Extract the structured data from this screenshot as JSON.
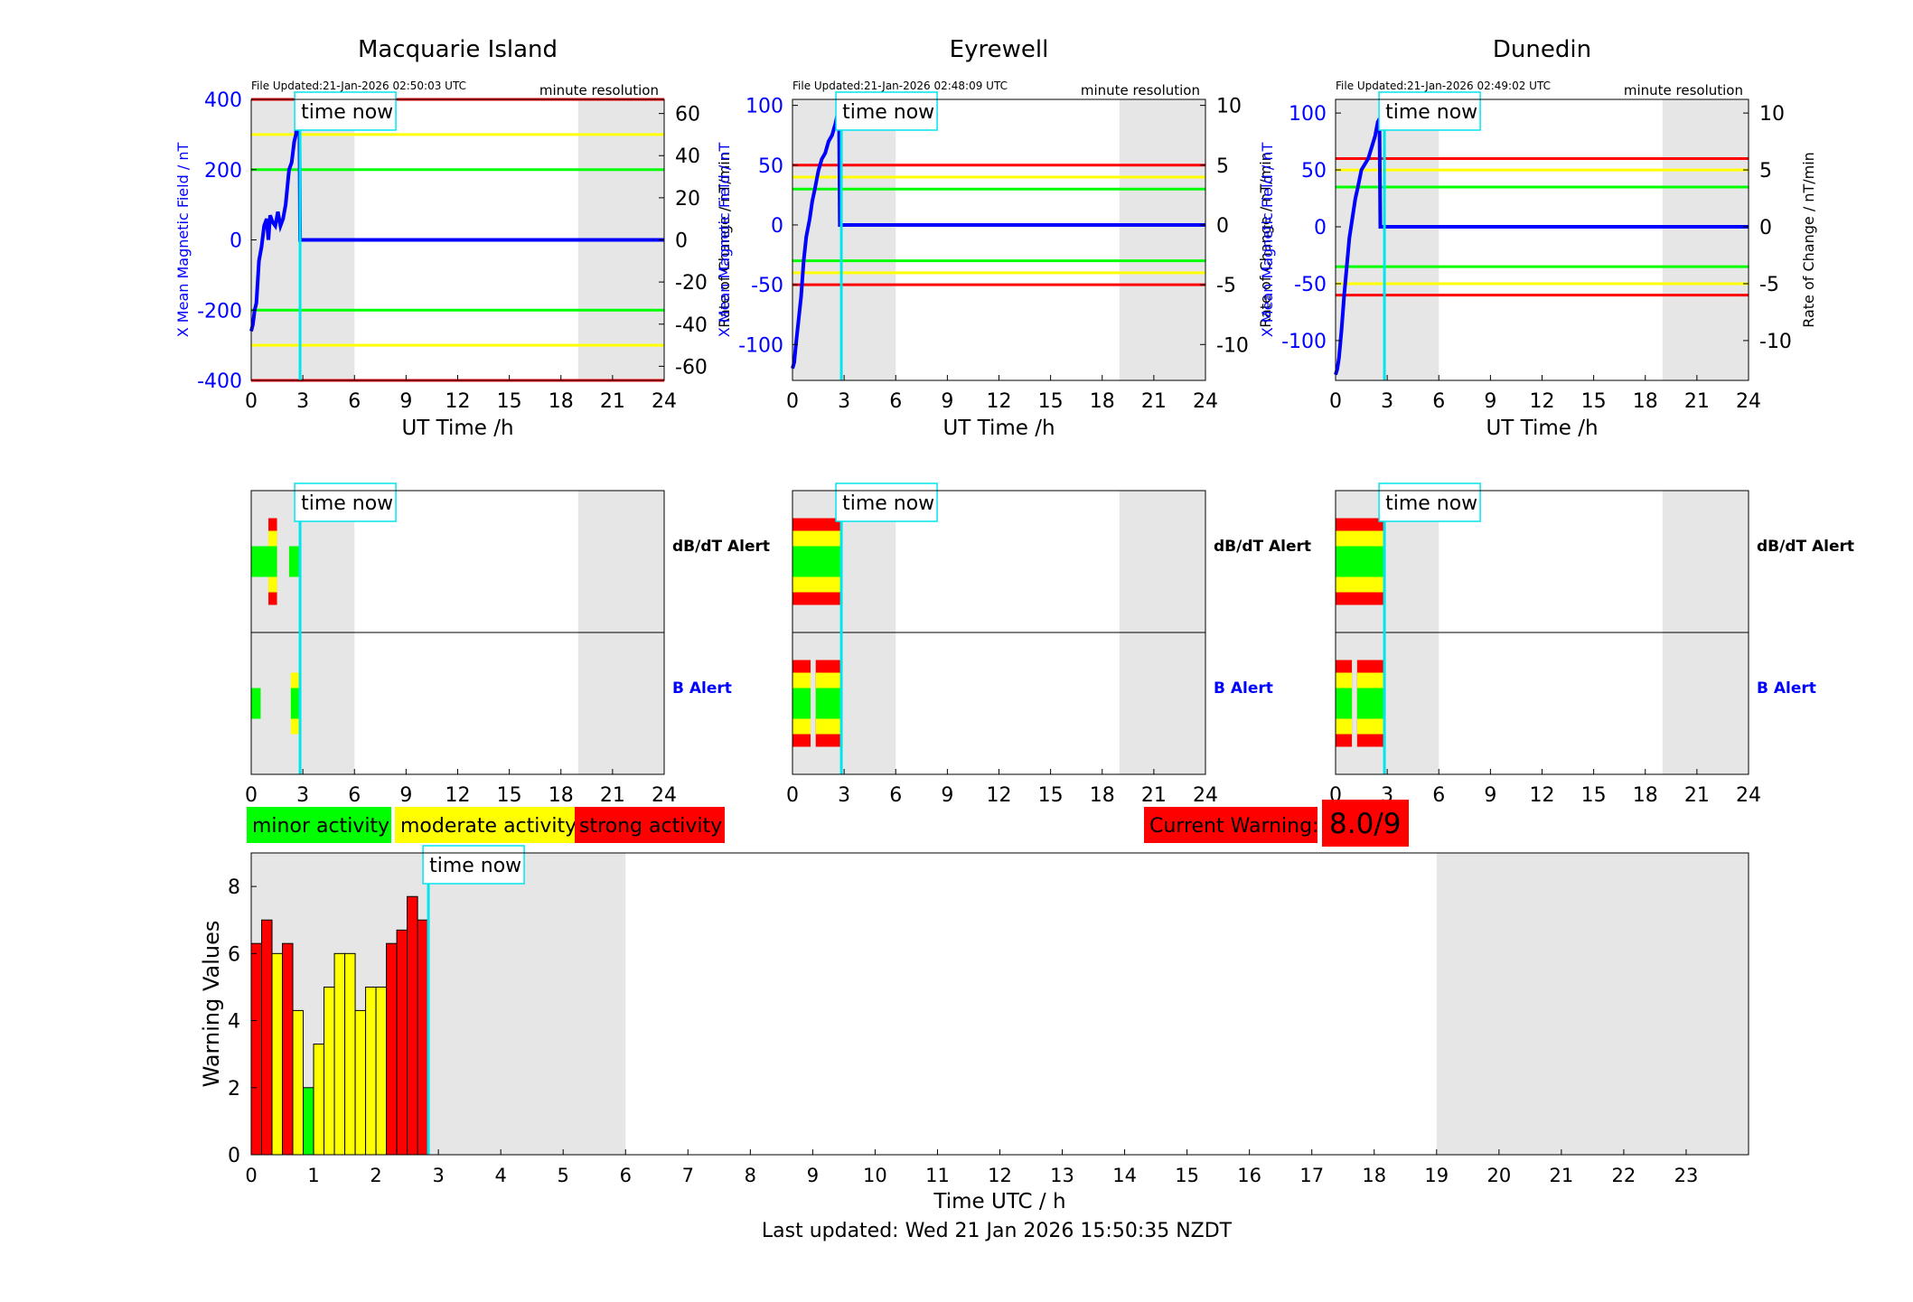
{
  "footer": {
    "last_updated": "Last updated: Wed 21 Jan 2026 15:50:35 NZDT"
  },
  "colors": {
    "minor": "#00ff00",
    "moderate": "#ffff00",
    "strong": "#ff0000",
    "field": "#0000ff",
    "time_now": "#00e5ee",
    "night_shade": "#e6e6e6"
  },
  "legend": {
    "minor": "minor activity",
    "moderate": "moderate activity",
    "strong": "strong activity"
  },
  "current_warning": {
    "label": "Current Warning:",
    "value": "8.0/9"
  },
  "time_now_label": "time now",
  "chart_data": [
    {
      "type": "line",
      "panel": "field",
      "title": "Macquarie Island",
      "file_updated": "File Updated:21-Jan-2026 02:50:03 UTC",
      "resolution": "minute resolution",
      "xlabel": "UT Time /h",
      "ylabel": "X Mean Magnetic Field / nT",
      "y2label": "Rate of Change / nT/min",
      "xlim": [
        0,
        24
      ],
      "ylim": [
        -400,
        400
      ],
      "y2lim": [
        -66.7,
        66.7
      ],
      "xticks": [
        "0",
        "3",
        "6",
        "9",
        "12",
        "15",
        "18",
        "21",
        "24"
      ],
      "yticks": [
        "-400",
        "-200",
        "0",
        "200",
        "400"
      ],
      "y2ticks": [
        "-60",
        "-40",
        "-20",
        "0",
        "20",
        "40",
        "60"
      ],
      "time_now": 2.84,
      "night_shading": [
        [
          0,
          6
        ],
        [
          19,
          24
        ]
      ],
      "thresholds": [
        {
          "level": "strong",
          "value": 400
        },
        {
          "level": "moderate",
          "value": 300
        },
        {
          "level": "minor",
          "value": 200
        },
        {
          "level": "minor",
          "value": -200
        },
        {
          "level": "moderate",
          "value": -300
        },
        {
          "level": "strong",
          "value": -400
        }
      ],
      "series": [
        {
          "x": [
            0,
            0.1,
            0.2,
            0.3,
            0.45,
            0.6,
            0.75,
            0.9,
            1.0,
            1.1,
            1.25,
            1.4,
            1.55,
            1.7,
            1.85,
            2.0,
            2.1,
            2.2,
            2.35,
            2.5,
            2.6,
            2.7,
            2.8,
            2.84,
            3.0,
            24
          ],
          "y": [
            -260,
            -240,
            -200,
            -180,
            -60,
            -20,
            40,
            60,
            0,
            70,
            50,
            40,
            80,
            40,
            60,
            100,
            150,
            200,
            220,
            280,
            300,
            380,
            360,
            0,
            0,
            0
          ]
        }
      ]
    },
    {
      "type": "line",
      "panel": "field",
      "title": "Eyrewell",
      "file_updated": "File Updated:21-Jan-2026 02:48:09 UTC",
      "resolution": "minute resolution",
      "xlabel": "UT Time /h",
      "ylabel": "X Mean Magnetic Field / nT",
      "y2label": "Rate of Change / nT/min",
      "xlim": [
        0,
        24
      ],
      "ylim": [
        -130,
        105
      ],
      "y2lim": [
        -13,
        10.5
      ],
      "xticks": [
        "0",
        "3",
        "6",
        "9",
        "12",
        "15",
        "18",
        "21",
        "24"
      ],
      "yticks": [
        "-100",
        "-50",
        "0",
        "50",
        "100"
      ],
      "y2ticks": [
        "-10",
        "-5",
        "0",
        "5",
        "10"
      ],
      "time_now": 2.84,
      "night_shading": [
        [
          0,
          6
        ],
        [
          19,
          24
        ]
      ],
      "thresholds": [
        {
          "level": "strong",
          "value": 50
        },
        {
          "level": "moderate",
          "value": 40
        },
        {
          "level": "minor",
          "value": 30
        },
        {
          "level": "minor",
          "value": -30
        },
        {
          "level": "moderate",
          "value": -40
        },
        {
          "level": "strong",
          "value": -50
        }
      ],
      "series": [
        {
          "x": [
            0,
            0.1,
            0.2,
            0.35,
            0.5,
            0.65,
            0.8,
            1.0,
            1.15,
            1.3,
            1.5,
            1.7,
            1.9,
            2.1,
            2.3,
            2.5,
            2.65,
            2.7,
            2.75,
            3.0,
            24
          ],
          "y": [
            -120,
            -115,
            -100,
            -80,
            -60,
            -30,
            -10,
            5,
            20,
            30,
            45,
            55,
            60,
            70,
            75,
            85,
            95,
            100,
            0,
            0,
            0
          ]
        }
      ]
    },
    {
      "type": "line",
      "panel": "field",
      "title": "Dunedin",
      "file_updated": "File Updated:21-Jan-2026 02:49:02 UTC",
      "resolution": "minute resolution",
      "xlabel": "UT Time /h",
      "ylabel": "X Mean Magnetic Field / nT",
      "y2label": "Rate of Change / nT/min",
      "xlim": [
        0,
        24
      ],
      "ylim": [
        -135,
        112
      ],
      "y2lim": [
        -13.5,
        11.2
      ],
      "xticks": [
        "0",
        "3",
        "6",
        "9",
        "12",
        "15",
        "18",
        "21",
        "24"
      ],
      "yticks": [
        "-100",
        "-50",
        "0",
        "50",
        "100"
      ],
      "y2ticks": [
        "-10",
        "-5",
        "0",
        "5",
        "10"
      ],
      "time_now": 2.84,
      "night_shading": [
        [
          0,
          6
        ],
        [
          19,
          24
        ]
      ],
      "thresholds": [
        {
          "level": "strong",
          "value": 60
        },
        {
          "level": "moderate",
          "value": 50
        },
        {
          "level": "minor",
          "value": 35
        },
        {
          "level": "minor",
          "value": -35
        },
        {
          "level": "moderate",
          "value": -50
        },
        {
          "level": "strong",
          "value": -60
        }
      ],
      "series": [
        {
          "x": [
            0,
            0.1,
            0.2,
            0.35,
            0.5,
            0.65,
            0.8,
            1.0,
            1.15,
            1.3,
            1.5,
            1.7,
            1.9,
            2.1,
            2.3,
            2.45,
            2.55,
            2.6,
            3.0,
            24
          ],
          "y": [
            -130,
            -125,
            -115,
            -90,
            -60,
            -35,
            -10,
            10,
            25,
            35,
            50,
            55,
            60,
            70,
            80,
            92,
            95,
            0,
            0,
            0
          ]
        }
      ]
    },
    {
      "type": "heatmap",
      "panel": "alert",
      "title": "Macquarie Island",
      "xlim": [
        0,
        24
      ],
      "xticks": [
        "0",
        "3",
        "6",
        "9",
        "12",
        "15",
        "18",
        "21",
        "24"
      ],
      "time_now": 2.84,
      "night_shading": [
        [
          0,
          6
        ],
        [
          19,
          24
        ]
      ],
      "rows": [
        {
          "label": "dB/dT Alert",
          "segments": [
            {
              "start": 0,
              "end": 1.0,
              "level": "minor"
            },
            {
              "start": 1.0,
              "end": 1.5,
              "level": "strong"
            },
            {
              "start": 2.2,
              "end": 2.8,
              "level": "minor"
            }
          ]
        },
        {
          "label": "B Alert",
          "segments": [
            {
              "start": 0,
              "end": 0.55,
              "level": "minor"
            },
            {
              "start": 2.3,
              "end": 2.84,
              "level": "moderate"
            }
          ]
        }
      ]
    },
    {
      "type": "heatmap",
      "panel": "alert",
      "title": "Eyrewell",
      "xlim": [
        0,
        24
      ],
      "xticks": [
        "0",
        "3",
        "6",
        "9",
        "12",
        "15",
        "18",
        "21",
        "24"
      ],
      "time_now": 2.84,
      "night_shading": [
        [
          0,
          6
        ],
        [
          19,
          24
        ]
      ],
      "rows": [
        {
          "label": "dB/dT Alert",
          "segments": [
            {
              "start": 0,
              "end": 2.84,
              "level": "strong"
            }
          ]
        },
        {
          "label": "B Alert",
          "segments": [
            {
              "start": 0,
              "end": 1.05,
              "level": "strong"
            },
            {
              "start": 1.35,
              "end": 2.84,
              "level": "strong"
            }
          ]
        }
      ]
    },
    {
      "type": "heatmap",
      "panel": "alert",
      "title": "Dunedin",
      "xlim": [
        0,
        24
      ],
      "xticks": [
        "0",
        "3",
        "6",
        "9",
        "12",
        "15",
        "18",
        "21",
        "24"
      ],
      "time_now": 2.84,
      "night_shading": [
        [
          0,
          6
        ],
        [
          19,
          24
        ]
      ],
      "rows": [
        {
          "label": "dB/dT Alert",
          "segments": [
            {
              "start": 0,
              "end": 2.84,
              "level": "strong"
            }
          ]
        },
        {
          "label": "B Alert",
          "segments": [
            {
              "start": 0,
              "end": 0.95,
              "level": "strong"
            },
            {
              "start": 1.25,
              "end": 2.84,
              "level": "strong"
            }
          ]
        }
      ]
    },
    {
      "type": "bar",
      "panel": "warning",
      "xlabel": "Time UTC / h",
      "ylabel": "Warning Values",
      "xlim": [
        0,
        24
      ],
      "ylim": [
        0,
        9
      ],
      "xticks": [
        "0",
        "1",
        "2",
        "3",
        "4",
        "5",
        "6",
        "7",
        "8",
        "9",
        "10",
        "11",
        "12",
        "13",
        "14",
        "15",
        "16",
        "17",
        "18",
        "19",
        "20",
        "21",
        "22",
        "23"
      ],
      "yticks": [
        "0",
        "2",
        "4",
        "6",
        "8"
      ],
      "time_now": 2.84,
      "night_shading": [
        [
          0,
          6
        ],
        [
          19,
          24
        ]
      ],
      "bar_width": 0.1667,
      "x": [
        0.0833,
        0.25,
        0.4167,
        0.5833,
        0.75,
        0.9167,
        1.0833,
        1.25,
        1.4167,
        1.5833,
        1.75,
        1.9167,
        2.0833,
        2.25,
        2.4167,
        2.5833,
        2.75
      ],
      "values": [
        6.3,
        7.0,
        6.0,
        6.3,
        4.3,
        2.0,
        3.3,
        5.0,
        6.0,
        6.0,
        4.3,
        5.0,
        5.0,
        6.3,
        6.7,
        7.7,
        7.0
      ],
      "levels": [
        "strong",
        "strong",
        "moderate",
        "strong",
        "moderate",
        "minor",
        "moderate",
        "moderate",
        "moderate",
        "moderate",
        "moderate",
        "moderate",
        "moderate",
        "strong",
        "strong",
        "strong",
        "strong"
      ]
    }
  ]
}
